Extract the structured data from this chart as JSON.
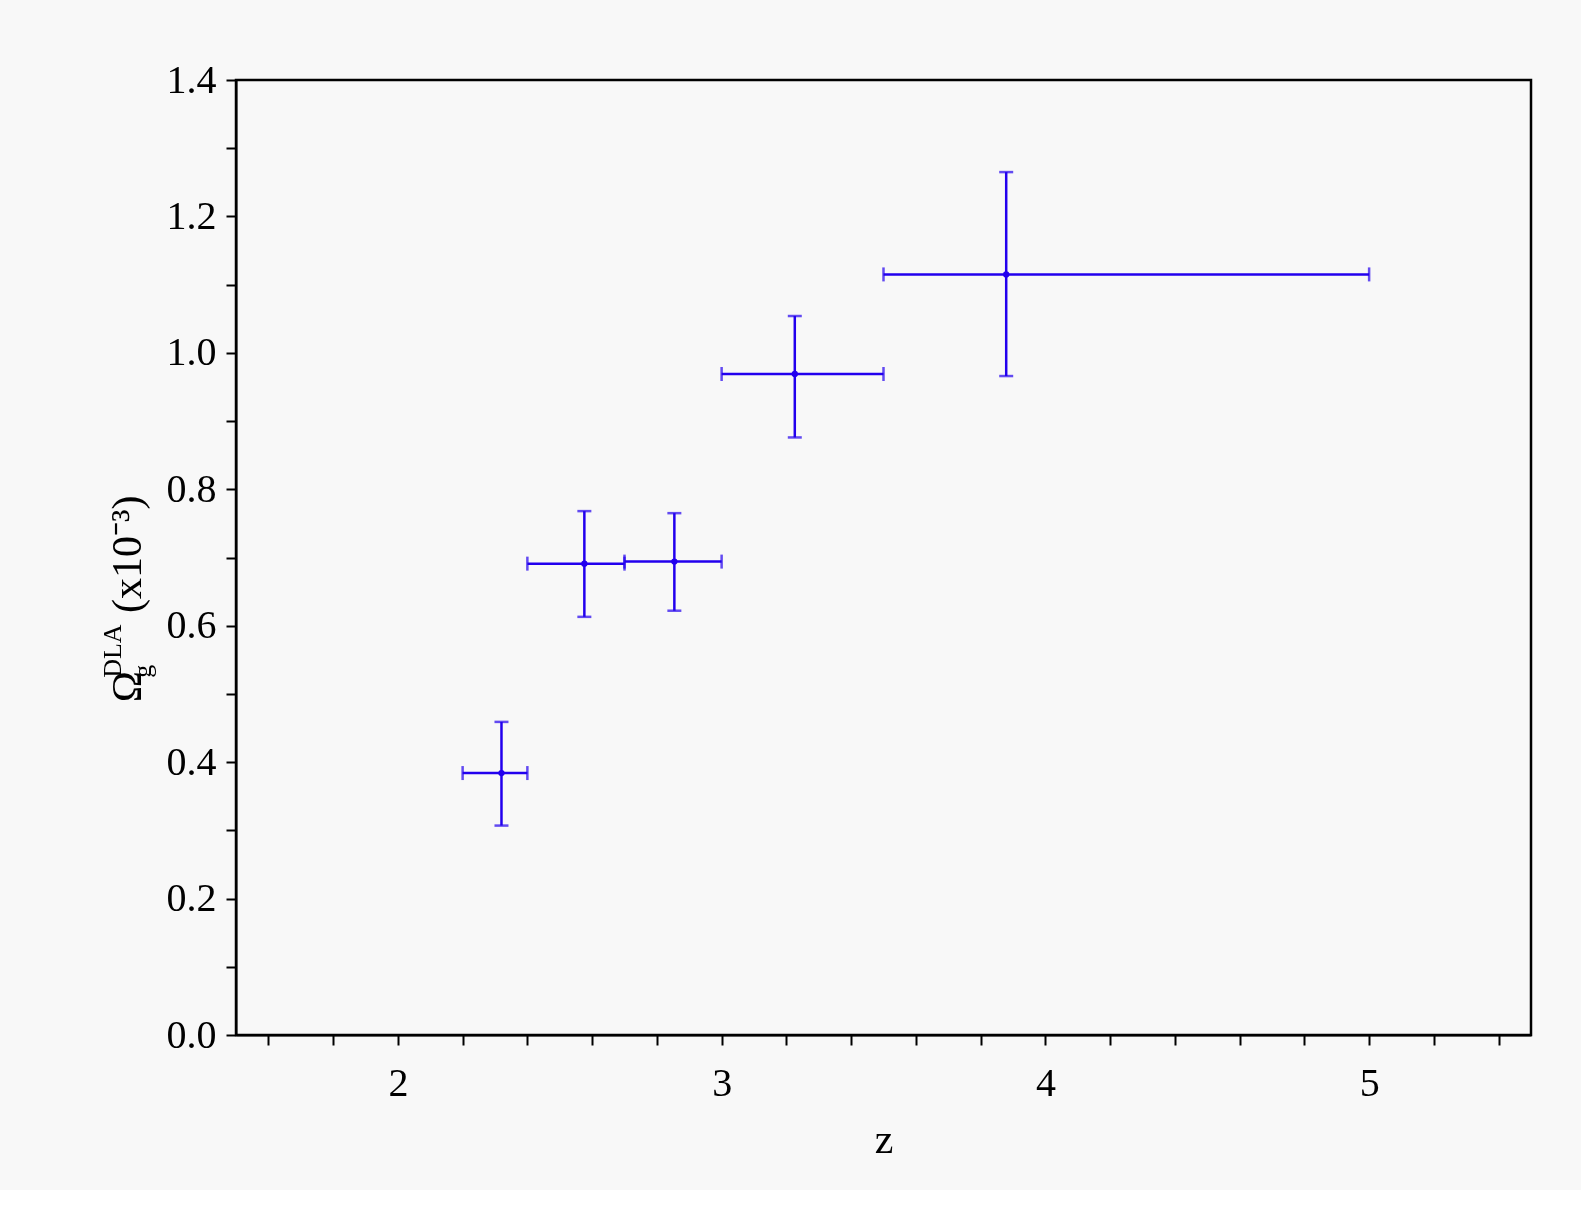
{
  "chart_data": {
    "type": "scatter",
    "xlabel": "z",
    "ylabel": "Ω$_{g}$$^{DLA}$ (x10⁻³)",
    "x": [
      2.32,
      2.576,
      2.854,
      3.226,
      3.879
    ],
    "series": [
      {
        "color": "#2200ee",
        "values": [
          0.384,
          0.691,
          0.694,
          0.969,
          1.115
        ],
        "errors": [
          [
            0.307,
            0.459
          ],
          [
            0.613,
            0.768
          ],
          [
            0.622,
            0.765
          ],
          [
            0.876,
            1.054
          ],
          [
            0.966,
            1.265
          ]
        ],
        "xerrors": [
          [
            2.2,
            2.4
          ],
          [
            2.4,
            2.7
          ],
          [
            2.7,
            3.0
          ],
          [
            3.0,
            3.5
          ],
          [
            3.5,
            5.0
          ]
        ]
      }
    ],
    "marker": "none",
    "grid": false,
    "xlim": [
      1.5,
      5.5
    ],
    "xticks": [
      {
        "value": 1.6,
        "label": null
      },
      {
        "value": 1.8,
        "label": null
      },
      2,
      {
        "value": 2.2,
        "label": null
      },
      {
        "value": 2.4,
        "label": null
      },
      {
        "value": 2.6,
        "label": null
      },
      {
        "value": 2.8,
        "label": null
      },
      3,
      {
        "value": 3.2,
        "label": null
      },
      {
        "value": 3.4,
        "label": null
      },
      {
        "value": 3.6,
        "label": null
      },
      {
        "value": 3.8,
        "label": null
      },
      4,
      {
        "value": 4.2,
        "label": null
      },
      {
        "value": 4.4,
        "label": null
      },
      {
        "value": 4.6,
        "label": null
      },
      {
        "value": 4.8,
        "label": null
      },
      5,
      {
        "value": 5.2,
        "label": null
      },
      {
        "value": 5.4,
        "label": null
      }
    ],
    "ylim": [
      0,
      1.4
    ],
    "yticks": [
      {
        "value": 0,
        "label": "0.0"
      },
      {
        "value": 0.1,
        "label": null
      },
      0.2,
      {
        "value": 0.3,
        "label": null
      },
      0.4,
      {
        "value": 0.5,
        "label": null
      },
      0.6,
      {
        "value": 0.7,
        "label": null
      },
      0.8,
      {
        "value": 0.9,
        "label": null
      },
      {
        "value": 1.0,
        "label": "1.0"
      },
      {
        "value": 1.1,
        "label": null
      },
      1.2,
      {
        "value": 1.3,
        "label": null
      },
      1.4
    ]
  }
}
